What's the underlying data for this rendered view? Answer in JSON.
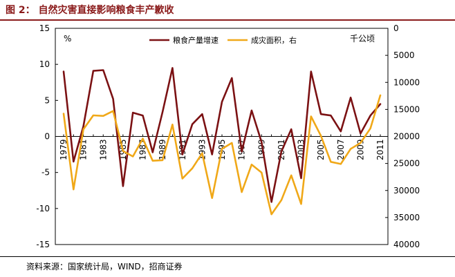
{
  "figure": {
    "title": "图 2：  自然灾害直接影响粮食丰产歉收",
    "source": "资料来源：国家统计局，WIND，招商证券"
  },
  "colors": {
    "title": "#8a1a1a",
    "grain_series": "#7b1113",
    "disaster_series": "#f0a818"
  },
  "chart_data": {
    "type": "line",
    "legend_position": "top-center",
    "grid": false,
    "x": [
      1979,
      1980,
      1981,
      1982,
      1983,
      1984,
      1985,
      1986,
      1987,
      1988,
      1989,
      1990,
      1991,
      1992,
      1993,
      1994,
      1995,
      1996,
      1997,
      1998,
      1999,
      2000,
      2001,
      2002,
      2003,
      2004,
      2005,
      2006,
      2007,
      2008,
      2009,
      2010,
      2011
    ],
    "xticks": [
      1979,
      1981,
      1983,
      1985,
      1987,
      1989,
      1991,
      1993,
      1995,
      1997,
      1999,
      2001,
      2003,
      2005,
      2007,
      2009,
      2011
    ],
    "left_axis": {
      "unit": "%",
      "ylim": [
        -15,
        15
      ],
      "ticks": [
        15,
        10,
        5,
        0,
        -5,
        -10,
        -15
      ]
    },
    "right_axis": {
      "unit": "千公顷",
      "ylim": [
        0,
        40000
      ],
      "inverted": true,
      "ticks": [
        0,
        5000,
        10000,
        15000,
        20000,
        25000,
        30000,
        35000,
        40000
      ]
    },
    "series": [
      {
        "name": "粮食产量增速",
        "axis": "left",
        "values": [
          9.0,
          -3.5,
          1.4,
          9.1,
          9.2,
          5.2,
          -6.9,
          3.3,
          2.9,
          -2.2,
          3.4,
          9.5,
          -2.5,
          1.7,
          3.1,
          -2.5,
          4.8,
          8.1,
          -2.1,
          3.6,
          -0.8,
          -9.1,
          -2.1,
          1.0,
          -5.8,
          9.0,
          3.1,
          2.9,
          0.7,
          5.4,
          0.4,
          2.9,
          4.5
        ]
      },
      {
        "name": "成灾面积，右",
        "axis": "right",
        "values": [
          15800,
          29800,
          18700,
          16100,
          16200,
          15300,
          22700,
          23700,
          20400,
          24500,
          24400,
          17800,
          27800,
          25900,
          23100,
          31400,
          22300,
          21200,
          30300,
          25200,
          26700,
          34400,
          31800,
          27200,
          32500,
          16300,
          19900,
          24700,
          25100,
          22300,
          21200,
          18500,
          12400
        ]
      }
    ]
  }
}
